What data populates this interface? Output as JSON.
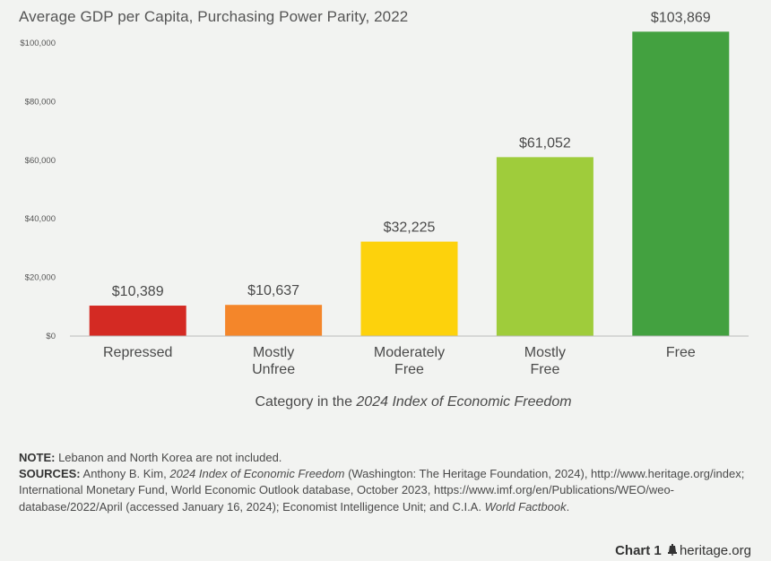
{
  "chart_data": {
    "type": "bar",
    "title": "Average GDP per Capita, Purchasing Power Parity, 2022",
    "xlabel_prefix": "Category in the ",
    "xlabel_italic": "2024 Index of Economic Freedom",
    "ylabel": "",
    "ylim": [
      0,
      107000
    ],
    "yticks": [
      0,
      20000,
      40000,
      60000,
      80000,
      100000
    ],
    "ytick_labels": [
      "$0",
      "$20,000",
      "$40,000",
      "$60,000",
      "$80,000",
      "$100,000"
    ],
    "categories": [
      [
        "Repressed"
      ],
      [
        "Mostly",
        "Unfree"
      ],
      [
        "Moderately",
        "Free"
      ],
      [
        "Mostly",
        "Free"
      ],
      [
        "Free"
      ]
    ],
    "values": [
      10389,
      10637,
      32225,
      61052,
      103869
    ],
    "value_labels": [
      "$10,389",
      "$10,637",
      "$32,225",
      "$61,052",
      "$103,869"
    ],
    "colors": [
      "#d42a23",
      "#f4862a",
      "#fdd20c",
      "#9fcc3b",
      "#43a140"
    ],
    "grid": false
  },
  "notes": {
    "note_label": "NOTE:",
    "note_text": " Lebanon and North Korea are not included.",
    "sources_label": "SOURCES:",
    "sources_text_1": " Anthony B. Kim, ",
    "sources_italic_1": "2024 Index of Economic Freedom",
    "sources_text_2": " (Washington: The Heritage Foundation, 2024), http://www.heritage.org/index; International Monetary Fund, World Economic Outlook database, October 2023, https://www.imf.org/en/Publications/WEO/weo-database/2022/April (accessed January 16, 2024); Economist Intelligence Unit; and C.I.A. ",
    "sources_italic_2": "World Factbook",
    "sources_text_3": "."
  },
  "footer": {
    "chart_label": "Chart 1",
    "site": "heritage.org",
    "icon": "liberty-bell-icon"
  }
}
